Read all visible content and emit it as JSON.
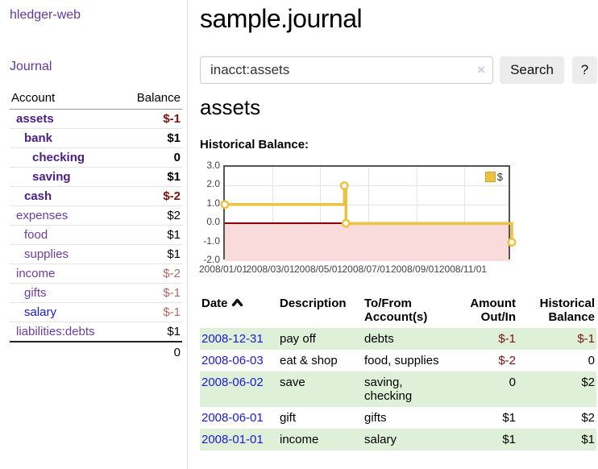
{
  "app": {
    "title": "hledger-web"
  },
  "sidebar": {
    "journal_link": "Journal",
    "account_header": "Account",
    "balance_header": "Balance",
    "accounts": [
      {
        "name": "assets",
        "indent": 0,
        "bold": true,
        "balance": "$-1",
        "balance_style": "neg"
      },
      {
        "name": "bank",
        "indent": 1,
        "bold": true,
        "balance": "$1",
        "balance_style": ""
      },
      {
        "name": "checking",
        "indent": 2,
        "bold": true,
        "balance": "0",
        "balance_style": ""
      },
      {
        "name": "saving",
        "indent": 2,
        "bold": true,
        "balance": "$1",
        "balance_style": ""
      },
      {
        "name": "cash",
        "indent": 1,
        "bold": true,
        "balance": "$-2",
        "balance_style": "neg"
      },
      {
        "name": "expenses",
        "indent": 0,
        "bold": false,
        "balance": "$2",
        "balance_style": ""
      },
      {
        "name": "food",
        "indent": 1,
        "bold": false,
        "balance": "$1",
        "balance_style": ""
      },
      {
        "name": "supplies",
        "indent": 1,
        "bold": false,
        "balance": "$1",
        "balance_style": ""
      },
      {
        "name": "income",
        "indent": 0,
        "bold": false,
        "balance": "$-2",
        "balance_style": "negmuted"
      },
      {
        "name": "gifts",
        "indent": 1,
        "bold": false,
        "balance": "$-1",
        "balance_style": "negmuted"
      },
      {
        "name": "salary",
        "indent": 1,
        "bold": false,
        "balance": "$-1",
        "balance_style": "negmuted",
        "blue": true
      },
      {
        "name": "liabilities:debts",
        "indent": 0,
        "bold": false,
        "balance": "$1",
        "balance_style": ""
      }
    ],
    "total": "0"
  },
  "header": {
    "title": "sample.journal"
  },
  "search": {
    "value": "inacct:assets",
    "clear_icon": "×",
    "button_label": "Search",
    "help_label": "?"
  },
  "account_page": {
    "heading": "assets",
    "chart_label": "Historical Balance:"
  },
  "chart_data": {
    "type": "line",
    "step": true,
    "title": "Historical Balance:",
    "series": [
      {
        "name": "$",
        "color": "#edc240",
        "points": [
          [
            "2008-01-01",
            1
          ],
          [
            "2008-06-01",
            2
          ],
          [
            "2008-06-03",
            0
          ],
          [
            "2008-12-31",
            -1
          ]
        ]
      }
    ],
    "x_range": [
      "2008-01-01",
      "2008-12-31"
    ],
    "x_ticks": [
      "2008/01/01",
      "2008/03/01",
      "2008/05/01",
      "2008/07/01",
      "2008/09/01",
      "2008/11/01"
    ],
    "y_ticks": [
      "3.0",
      "2.0",
      "1.0",
      "0.0",
      "-1.0",
      "-2.0"
    ],
    "ylim": [
      -2,
      3
    ],
    "grid": true,
    "legend_position": "top-right",
    "legend_label": "$",
    "negative_region_color": "#fadbdb",
    "zero_line_color": "#8b0000"
  },
  "register": {
    "headers": {
      "date": "Date",
      "description": "Description",
      "accounts": "To/From Account(s)",
      "amount": "Amount Out/In",
      "balance": "Historical Balance"
    },
    "sort": "ascending",
    "rows": [
      {
        "date": "2008-12-31",
        "description": "pay off",
        "accounts": "debts",
        "amount": "$-1",
        "amount_neg": true,
        "balance": "$-1",
        "balance_neg": true
      },
      {
        "date": "2008-06-03",
        "description": "eat & shop",
        "accounts": "food, supplies",
        "amount": "$-2",
        "amount_neg": true,
        "balance": "0",
        "balance_neg": false
      },
      {
        "date": "2008-06-02",
        "description": "save",
        "accounts": "saving, checking",
        "amount": "0",
        "amount_neg": false,
        "balance": "$2",
        "balance_neg": false
      },
      {
        "date": "2008-06-01",
        "description": "gift",
        "accounts": "gifts",
        "amount": "$1",
        "amount_neg": false,
        "balance": "$2",
        "balance_neg": false
      },
      {
        "date": "2008-01-01",
        "description": "income",
        "accounts": "salary",
        "amount": "$1",
        "amount_neg": false,
        "balance": "$1",
        "balance_neg": false
      }
    ]
  }
}
